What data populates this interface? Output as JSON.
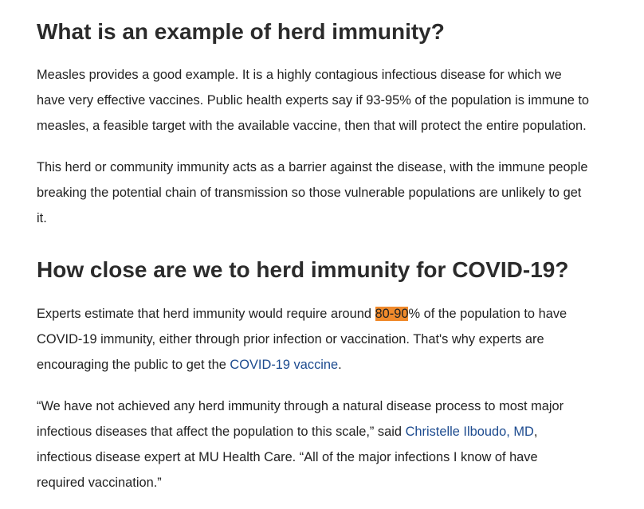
{
  "section1": {
    "heading": "What is an example of herd immunity?",
    "p1_lines": [
      "Measles provides a good example. It is a highly contagious infectious disease for which we",
      "have very effective vaccines. Public health experts say if 93-95% of the population is immune to",
      "measles, a feasible target with the available vaccine, then that will protect the entire population."
    ],
    "p2_lines": [
      "This herd or community immunity acts as a barrier against the disease, with the immune people",
      "breaking the potential chain of transmission so those vulnerable populations are unlikely to get",
      "it."
    ]
  },
  "section2": {
    "heading": "How close are we to herd immunity for COVID-19?",
    "p3": {
      "line1_before": "Experts estimate that herd immunity would require around ",
      "line1_highlight": "80-90",
      "line1_after": "% of the population to have",
      "line2": "COVID-19 immunity, either through prior infection or vaccination. That's why experts are",
      "line3_before": "encouraging the public to get the ",
      "line3_link": "COVID-19 vaccine",
      "line3_after": "."
    },
    "p4": {
      "line1": "“We have not achieved any herd immunity through a natural disease process to most major",
      "line2_before": "infectious diseases that affect the population to this scale,” said ",
      "line2_link": "Christelle Ilboudo, MD",
      "line2_after": ",",
      "line3": "infectious disease expert at MU Health Care. “All of the major infections I know of have",
      "line4": "required vaccination.”"
    }
  },
  "colors": {
    "text": "#222222",
    "heading": "#2b2b2b",
    "link": "#1d4b8f",
    "highlight": "#f08a2c"
  }
}
